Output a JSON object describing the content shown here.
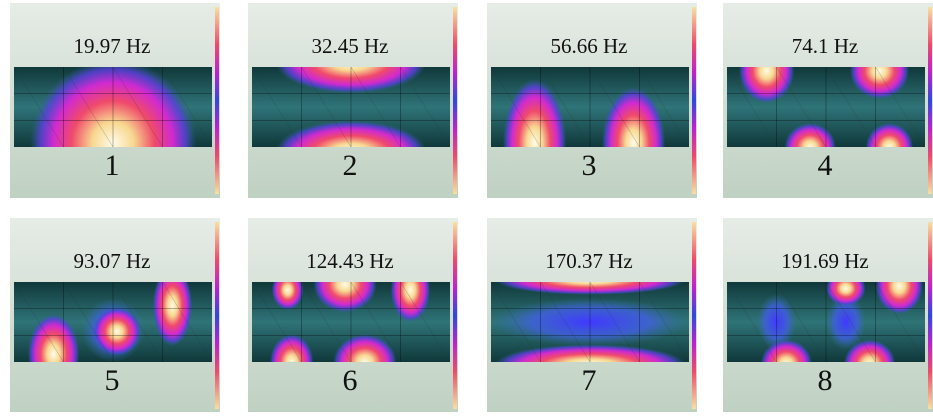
{
  "panels": [
    {
      "frequency": "19.97 Hz",
      "label": "1"
    },
    {
      "frequency": "32.45 Hz",
      "label": "2"
    },
    {
      "frequency": "56.66 Hz",
      "label": "3"
    },
    {
      "frequency": "74.1 Hz",
      "label": "4"
    },
    {
      "frequency": "93.07 Hz",
      "label": "5"
    },
    {
      "frequency": "124.43 Hz",
      "label": "6"
    },
    {
      "frequency": "170.37 Hz",
      "label": "7"
    },
    {
      "frequency": "191.69 Hz",
      "label": "8"
    }
  ]
}
